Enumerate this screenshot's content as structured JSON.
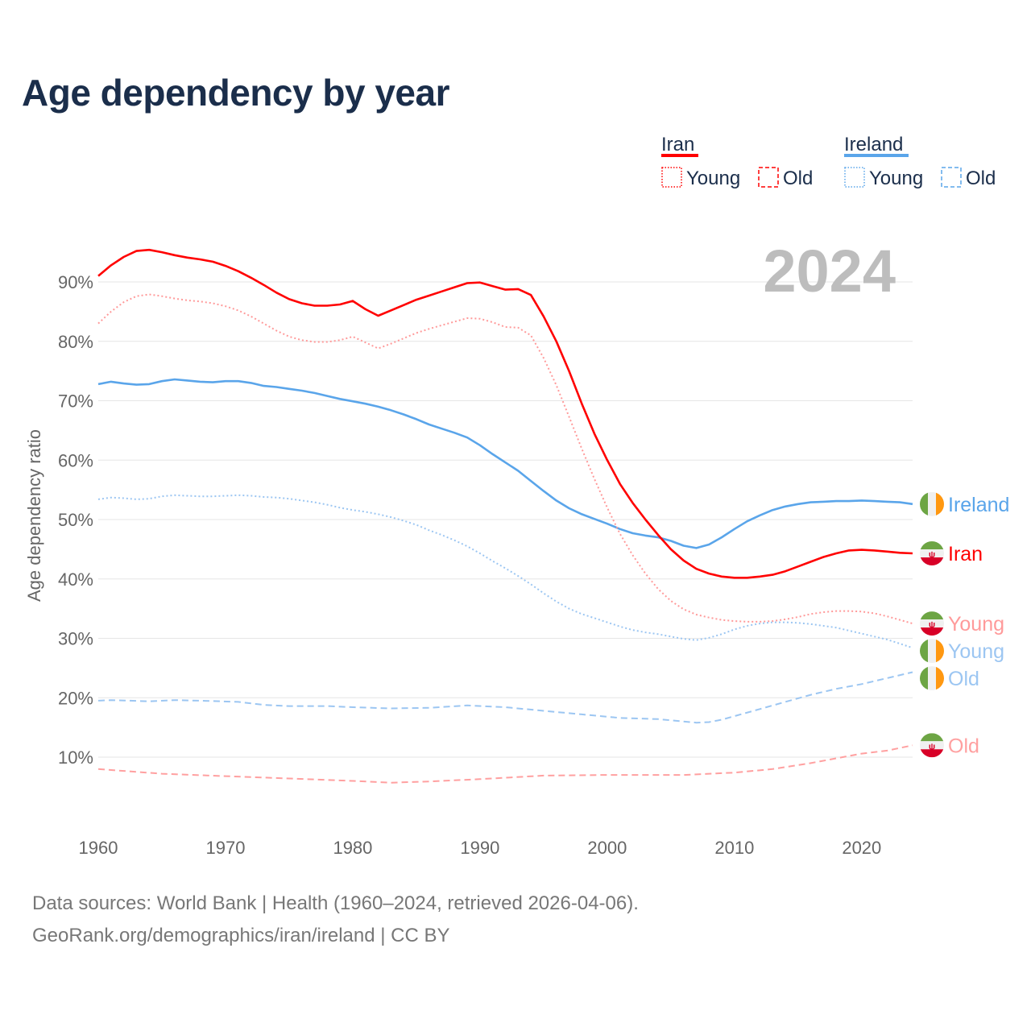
{
  "title": "Age dependency by year",
  "year_badge": "2024",
  "legend": {
    "groups": [
      {
        "name": "Iran",
        "color": "#ff0000",
        "items": [
          "Young",
          "Old"
        ]
      },
      {
        "name": "Ireland",
        "color": "#5aa5ea",
        "items": [
          "Young",
          "Old"
        ]
      }
    ]
  },
  "footer": {
    "line1": "Data sources: World Bank | Health (1960–2024, retrieved 2026-04-06).",
    "line2": "GeoRank.org/demographics/iran/ireland | CC BY"
  },
  "chart_data": {
    "type": "line",
    "title": "Age dependency by year",
    "xlabel": "",
    "ylabel": "Age dependency ratio",
    "xlim": [
      1960,
      2024
    ],
    "ylim": [
      0,
      100
    ],
    "x_ticks": [
      "1960",
      "1970",
      "1980",
      "1990",
      "2000",
      "2010",
      "2020"
    ],
    "y_ticks": [
      "10%",
      "20%",
      "30%",
      "40%",
      "50%",
      "60%",
      "70%",
      "80%",
      "90%"
    ],
    "grid": true,
    "series": [
      {
        "key": "ireland_total",
        "name": "Ireland",
        "label": "Ireland",
        "style": "solid",
        "color": "#5aa5ea",
        "flag": "ireland",
        "x": [
          1960,
          1961,
          1962,
          1963,
          1964,
          1965,
          1966,
          1967,
          1968,
          1969,
          1970,
          1971,
          1972,
          1973,
          1974,
          1975,
          1976,
          1977,
          1978,
          1979,
          1980,
          1981,
          1982,
          1983,
          1984,
          1985,
          1986,
          1987,
          1988,
          1989,
          1990,
          1991,
          1992,
          1993,
          1994,
          1995,
          1996,
          1997,
          1998,
          1999,
          2000,
          2001,
          2002,
          2003,
          2004,
          2005,
          2006,
          2007,
          2008,
          2009,
          2010,
          2011,
          2012,
          2013,
          2014,
          2015,
          2016,
          2017,
          2018,
          2019,
          2020,
          2021,
          2022,
          2023,
          2024
        ],
        "y": [
          72.8,
          73.2,
          72.9,
          72.7,
          72.8,
          73.3,
          73.6,
          73.4,
          73.2,
          73.1,
          73.3,
          73.3,
          73.0,
          72.5,
          72.3,
          72.0,
          71.7,
          71.3,
          70.8,
          70.3,
          69.9,
          69.5,
          69.0,
          68.4,
          67.7,
          66.9,
          66.0,
          65.3,
          64.6,
          63.8,
          62.5,
          61.0,
          59.6,
          58.2,
          56.5,
          54.8,
          53.2,
          51.9,
          50.9,
          50.1,
          49.3,
          48.4,
          47.7,
          47.3,
          47.0,
          46.4,
          45.6,
          45.2,
          45.8,
          47.0,
          48.4,
          49.7,
          50.7,
          51.6,
          52.2,
          52.6,
          52.9,
          53.0,
          53.1,
          53.1,
          53.2,
          53.1,
          53.0,
          52.9,
          52.6
        ]
      },
      {
        "key": "iran_total",
        "name": "Iran",
        "label": "Iran",
        "style": "solid",
        "color": "#ff0000",
        "flag": "iran",
        "x": [
          1960,
          1961,
          1962,
          1963,
          1964,
          1965,
          1966,
          1967,
          1968,
          1969,
          1970,
          1971,
          1972,
          1973,
          1974,
          1975,
          1976,
          1977,
          1978,
          1979,
          1980,
          1981,
          1982,
          1983,
          1984,
          1985,
          1986,
          1987,
          1988,
          1989,
          1990,
          1991,
          1992,
          1993,
          1994,
          1995,
          1996,
          1997,
          1998,
          1999,
          2000,
          2001,
          2002,
          2003,
          2004,
          2005,
          2006,
          2007,
          2008,
          2009,
          2010,
          2011,
          2012,
          2013,
          2014,
          2015,
          2016,
          2017,
          2018,
          2019,
          2020,
          2021,
          2022,
          2023,
          2024
        ],
        "y": [
          91.0,
          92.8,
          94.2,
          95.2,
          95.4,
          95.0,
          94.5,
          94.1,
          93.8,
          93.4,
          92.7,
          91.8,
          90.7,
          89.5,
          88.2,
          87.1,
          86.4,
          86.0,
          86.0,
          86.2,
          86.8,
          85.4,
          84.3,
          85.2,
          86.1,
          87.0,
          87.7,
          88.4,
          89.1,
          89.8,
          89.9,
          89.3,
          88.7,
          88.8,
          87.8,
          84.2,
          80.0,
          75.0,
          69.5,
          64.4,
          60.0,
          56.0,
          52.8,
          50.0,
          47.4,
          45.0,
          43.1,
          41.7,
          40.9,
          40.4,
          40.2,
          40.2,
          40.4,
          40.7,
          41.3,
          42.1,
          42.9,
          43.7,
          44.3,
          44.8,
          44.9,
          44.8,
          44.6,
          44.4,
          44.3
        ]
      },
      {
        "key": "iran_young",
        "name": "Iran Young",
        "label": "Young",
        "style": "dotted",
        "color": "#ff9a9a",
        "flag": "iran",
        "x": [
          1960,
          1961,
          1962,
          1963,
          1964,
          1965,
          1966,
          1967,
          1968,
          1969,
          1970,
          1971,
          1972,
          1973,
          1974,
          1975,
          1976,
          1977,
          1978,
          1979,
          1980,
          1981,
          1982,
          1983,
          1984,
          1985,
          1986,
          1987,
          1988,
          1989,
          1990,
          1991,
          1992,
          1993,
          1994,
          1995,
          1996,
          1997,
          1998,
          1999,
          2000,
          2001,
          2002,
          2003,
          2004,
          2005,
          2006,
          2007,
          2008,
          2009,
          2010,
          2011,
          2012,
          2013,
          2014,
          2015,
          2016,
          2017,
          2018,
          2019,
          2020,
          2021,
          2022,
          2023,
          2024
        ],
        "y": [
          83.0,
          85.0,
          86.6,
          87.6,
          87.9,
          87.6,
          87.2,
          86.9,
          86.7,
          86.4,
          85.9,
          85.2,
          84.2,
          83.0,
          81.8,
          80.8,
          80.2,
          79.9,
          79.9,
          80.2,
          80.8,
          79.8,
          78.8,
          79.6,
          80.5,
          81.4,
          82.1,
          82.7,
          83.3,
          83.9,
          83.8,
          83.2,
          82.4,
          82.3,
          81.0,
          77.2,
          72.6,
          67.3,
          61.9,
          56.8,
          52.0,
          47.6,
          44.0,
          40.9,
          38.3,
          36.3,
          34.9,
          34.0,
          33.5,
          33.1,
          32.9,
          32.8,
          32.8,
          32.9,
          33.2,
          33.6,
          34.1,
          34.4,
          34.6,
          34.6,
          34.5,
          34.2,
          33.7,
          33.1,
          32.5
        ]
      },
      {
        "key": "ireland_young",
        "name": "Ireland Young",
        "label": "Young",
        "style": "dotted",
        "color": "#9cc6f2",
        "flag": "ireland",
        "x": [
          1960,
          1961,
          1962,
          1963,
          1964,
          1965,
          1966,
          1967,
          1968,
          1969,
          1970,
          1971,
          1972,
          1973,
          1974,
          1975,
          1976,
          1977,
          1978,
          1979,
          1980,
          1981,
          1982,
          1983,
          1984,
          1985,
          1986,
          1987,
          1988,
          1989,
          1990,
          1991,
          1992,
          1993,
          1994,
          1995,
          1996,
          1997,
          1998,
          1999,
          2000,
          2001,
          2002,
          2003,
          2004,
          2005,
          2006,
          2007,
          2008,
          2009,
          2010,
          2011,
          2012,
          2013,
          2014,
          2015,
          2016,
          2017,
          2018,
          2019,
          2020,
          2021,
          2022,
          2023,
          2024
        ],
        "y": [
          53.4,
          53.7,
          53.6,
          53.4,
          53.5,
          53.9,
          54.1,
          54.0,
          53.9,
          53.9,
          54.0,
          54.1,
          54.0,
          53.8,
          53.7,
          53.5,
          53.2,
          52.9,
          52.5,
          52.0,
          51.6,
          51.3,
          50.9,
          50.4,
          49.8,
          49.1,
          48.2,
          47.4,
          46.5,
          45.5,
          44.3,
          43.0,
          41.8,
          40.5,
          39.1,
          37.6,
          36.2,
          35.0,
          34.1,
          33.4,
          32.7,
          32.0,
          31.4,
          31.0,
          30.7,
          30.3,
          29.9,
          29.7,
          30.1,
          30.7,
          31.5,
          32.1,
          32.5,
          32.7,
          32.7,
          32.6,
          32.4,
          32.1,
          31.8,
          31.3,
          30.8,
          30.3,
          29.8,
          29.1,
          28.4
        ]
      },
      {
        "key": "ireland_old",
        "name": "Ireland Old",
        "label": "Old",
        "style": "dashed",
        "color": "#9cc6f2",
        "flag": "ireland",
        "x": [
          1960,
          1961,
          1964,
          1966,
          1968,
          1971,
          1973,
          1975,
          1978,
          1980,
          1983,
          1986,
          1989,
          1992,
          1995,
          1998,
          2001,
          2004,
          2007,
          2008,
          2009,
          2010,
          2012,
          2014,
          2016,
          2018,
          2020,
          2022,
          2024
        ],
        "y": [
          19.5,
          19.6,
          19.4,
          19.6,
          19.5,
          19.3,
          18.8,
          18.6,
          18.6,
          18.4,
          18.2,
          18.3,
          18.7,
          18.4,
          17.8,
          17.2,
          16.6,
          16.4,
          15.8,
          15.9,
          16.3,
          16.9,
          18.1,
          19.3,
          20.5,
          21.5,
          22.3,
          23.3,
          24.3
        ]
      },
      {
        "key": "iran_old",
        "name": "Iran Old",
        "label": "Old",
        "style": "dashed",
        "color": "#ffa0a0",
        "flag": "iran",
        "x": [
          1960,
          1965,
          1970,
          1975,
          1980,
          1983,
          1986,
          1990,
          1995,
          2000,
          2006,
          2010,
          2013,
          2016,
          2018,
          2020,
          2022,
          2024
        ],
        "y": [
          8.0,
          7.2,
          6.8,
          6.4,
          6.0,
          5.7,
          5.9,
          6.3,
          6.9,
          7.0,
          7.0,
          7.4,
          8.0,
          9.0,
          9.8,
          10.6,
          11.1,
          12.0
        ]
      }
    ]
  }
}
